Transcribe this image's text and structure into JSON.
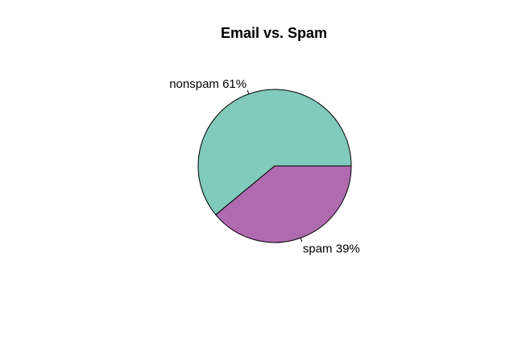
{
  "chart_data": {
    "type": "pie",
    "title": "Email vs. Spam",
    "slices": [
      {
        "category": "nonspam",
        "label": "nonspam 61%",
        "value": 61,
        "color": "#80cbbb"
      },
      {
        "category": "spam",
        "label": "spam 39%",
        "value": 39,
        "color": "#b06bb0"
      }
    ],
    "start": "3 o'clock",
    "direction": "counterclockwise"
  }
}
